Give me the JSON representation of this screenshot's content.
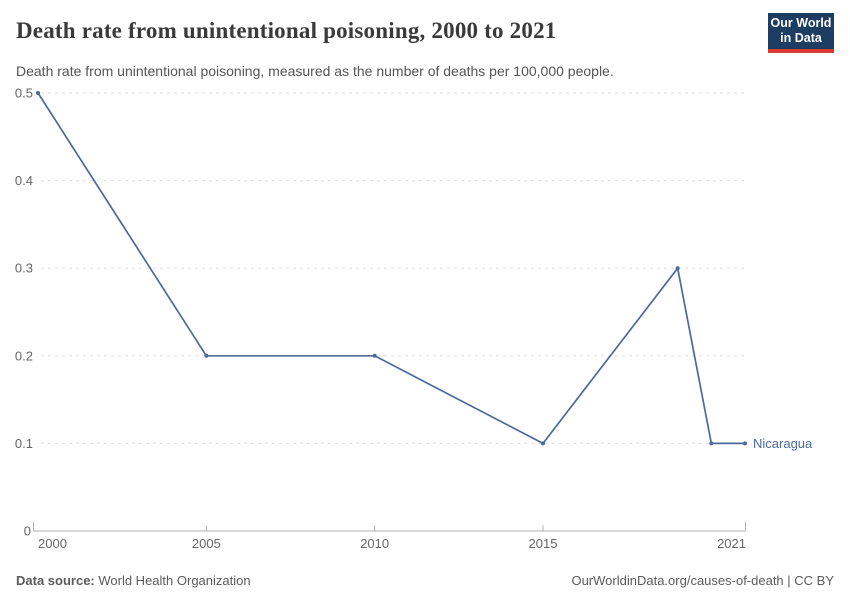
{
  "header": {
    "title": "Death rate from unintentional poisoning, 2000 to 2021",
    "subtitle": "Death rate from unintentional poisoning, measured as the number of deaths per 100,000 people."
  },
  "logo": {
    "line1": "Our World",
    "line2": "in Data",
    "bg_color": "#1d3d63",
    "accent_color": "#d73c32"
  },
  "chart_data": {
    "type": "line",
    "title": "Death rate from unintentional poisoning, 2000 to 2021",
    "xlabel": "",
    "ylabel": "",
    "xlim": [
      2000,
      2021
    ],
    "ylim": [
      0,
      0.5
    ],
    "x_ticks": [
      2000,
      2005,
      2010,
      2015,
      2021
    ],
    "y_ticks": [
      0,
      0.1,
      0.2,
      0.3,
      0.4,
      0.5
    ],
    "grid": "horizontal-dashed",
    "legend_position": "end-of-line-label",
    "series": [
      {
        "name": "Nicaragua",
        "color": "#4c6a9c",
        "points": [
          {
            "x": 2000,
            "y": 0.5
          },
          {
            "x": 2005,
            "y": 0.2
          },
          {
            "x": 2010,
            "y": 0.2
          },
          {
            "x": 2015,
            "y": 0.1
          },
          {
            "x": 2019,
            "y": 0.3
          },
          {
            "x": 2020,
            "y": 0.1
          },
          {
            "x": 2021,
            "y": 0.1
          }
        ]
      }
    ],
    "colors": {
      "gridline": "#dddddd",
      "axis_line": "#b0b0b0",
      "tick_label": "#666666"
    }
  },
  "footer": {
    "source_label": "Data source:",
    "source_value": " World Health Organization",
    "attribution": "OurWorldinData.org/causes-of-death | CC BY"
  }
}
